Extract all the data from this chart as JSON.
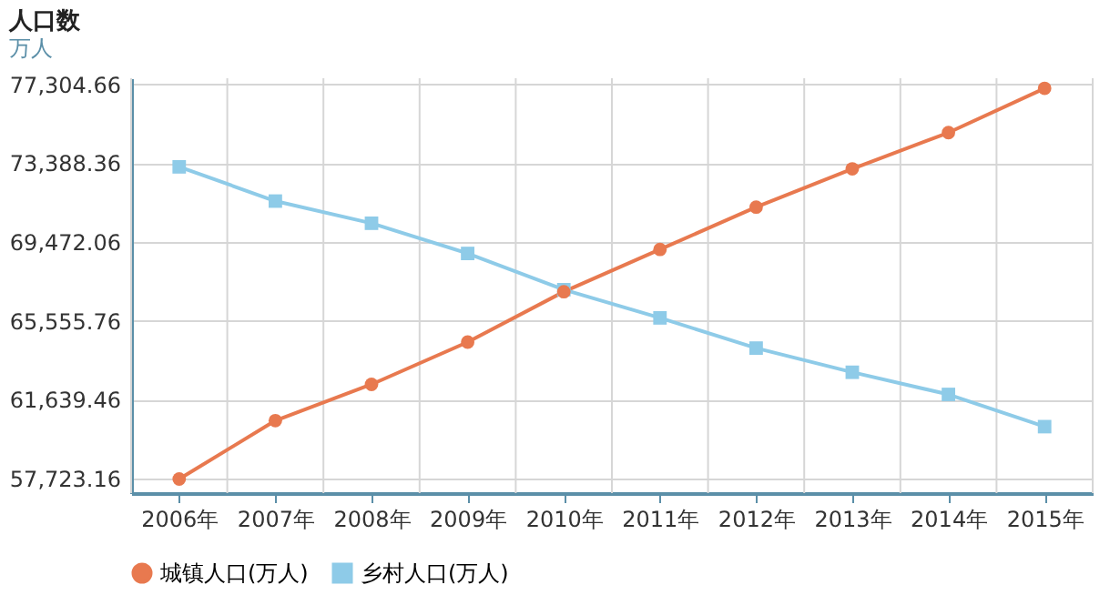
{
  "chart_data": {
    "type": "line",
    "title": "人口数",
    "ylabel": "万人",
    "categories": [
      "2006年",
      "2007年",
      "2008年",
      "2009年",
      "2010年",
      "2011年",
      "2012年",
      "2013年",
      "2014年",
      "2015年"
    ],
    "series": [
      {
        "name": "城镇人口(万人)",
        "color": "#e8794f",
        "marker": "circle",
        "values": [
          57700,
          60600,
          62400,
          64500,
          67000,
          69100,
          71200,
          73100,
          74900,
          77100
        ]
      },
      {
        "name": "乡村人口(万人)",
        "color": "#8ecbe8",
        "marker": "square",
        "values": [
          73200,
          71500,
          70400,
          68900,
          67100,
          65700,
          64200,
          63000,
          61900,
          60300
        ]
      }
    ],
    "ylim": [
      57000,
      77600
    ],
    "yticks": [
      {
        "value": 57723.16,
        "label": "57,723.16"
      },
      {
        "value": 61639.46,
        "label": "61,639.46"
      },
      {
        "value": 65555.76,
        "label": "65,555.76"
      },
      {
        "value": 69472.06,
        "label": "69,472.06"
      },
      {
        "value": 73388.36,
        "label": "73,388.36"
      },
      {
        "value": 77304.66,
        "label": "77,304.66"
      }
    ],
    "grid": true,
    "legend": "bottom",
    "line_style": "solid"
  }
}
